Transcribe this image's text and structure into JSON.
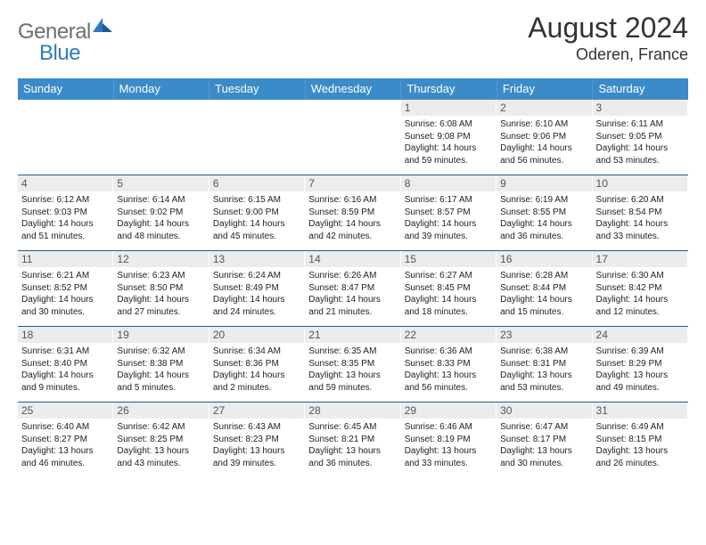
{
  "brand": {
    "main": "General",
    "accent": "Blue"
  },
  "title": "August 2024",
  "location": "Oderen, France",
  "colors": {
    "header_bar": "#3b8bc9",
    "week_divider": "#2a5a86",
    "daynum_bg": "#ececec",
    "logo_gray": "#6f6f6f",
    "logo_blue": "#2f7abf"
  },
  "weekdays": [
    "Sunday",
    "Monday",
    "Tuesday",
    "Wednesday",
    "Thursday",
    "Friday",
    "Saturday"
  ],
  "weeks": [
    [
      {
        "n": "",
        "lines": []
      },
      {
        "n": "",
        "lines": []
      },
      {
        "n": "",
        "lines": []
      },
      {
        "n": "",
        "lines": []
      },
      {
        "n": "1",
        "lines": [
          "Sunrise: 6:08 AM",
          "Sunset: 9:08 PM",
          "Daylight: 14 hours",
          "and 59 minutes."
        ]
      },
      {
        "n": "2",
        "lines": [
          "Sunrise: 6:10 AM",
          "Sunset: 9:06 PM",
          "Daylight: 14 hours",
          "and 56 minutes."
        ]
      },
      {
        "n": "3",
        "lines": [
          "Sunrise: 6:11 AM",
          "Sunset: 9:05 PM",
          "Daylight: 14 hours",
          "and 53 minutes."
        ]
      }
    ],
    [
      {
        "n": "4",
        "lines": [
          "Sunrise: 6:12 AM",
          "Sunset: 9:03 PM",
          "Daylight: 14 hours",
          "and 51 minutes."
        ]
      },
      {
        "n": "5",
        "lines": [
          "Sunrise: 6:14 AM",
          "Sunset: 9:02 PM",
          "Daylight: 14 hours",
          "and 48 minutes."
        ]
      },
      {
        "n": "6",
        "lines": [
          "Sunrise: 6:15 AM",
          "Sunset: 9:00 PM",
          "Daylight: 14 hours",
          "and 45 minutes."
        ]
      },
      {
        "n": "7",
        "lines": [
          "Sunrise: 6:16 AM",
          "Sunset: 8:59 PM",
          "Daylight: 14 hours",
          "and 42 minutes."
        ]
      },
      {
        "n": "8",
        "lines": [
          "Sunrise: 6:17 AM",
          "Sunset: 8:57 PM",
          "Daylight: 14 hours",
          "and 39 minutes."
        ]
      },
      {
        "n": "9",
        "lines": [
          "Sunrise: 6:19 AM",
          "Sunset: 8:55 PM",
          "Daylight: 14 hours",
          "and 36 minutes."
        ]
      },
      {
        "n": "10",
        "lines": [
          "Sunrise: 6:20 AM",
          "Sunset: 8:54 PM",
          "Daylight: 14 hours",
          "and 33 minutes."
        ]
      }
    ],
    [
      {
        "n": "11",
        "lines": [
          "Sunrise: 6:21 AM",
          "Sunset: 8:52 PM",
          "Daylight: 14 hours",
          "and 30 minutes."
        ]
      },
      {
        "n": "12",
        "lines": [
          "Sunrise: 6:23 AM",
          "Sunset: 8:50 PM",
          "Daylight: 14 hours",
          "and 27 minutes."
        ]
      },
      {
        "n": "13",
        "lines": [
          "Sunrise: 6:24 AM",
          "Sunset: 8:49 PM",
          "Daylight: 14 hours",
          "and 24 minutes."
        ]
      },
      {
        "n": "14",
        "lines": [
          "Sunrise: 6:26 AM",
          "Sunset: 8:47 PM",
          "Daylight: 14 hours",
          "and 21 minutes."
        ]
      },
      {
        "n": "15",
        "lines": [
          "Sunrise: 6:27 AM",
          "Sunset: 8:45 PM",
          "Daylight: 14 hours",
          "and 18 minutes."
        ]
      },
      {
        "n": "16",
        "lines": [
          "Sunrise: 6:28 AM",
          "Sunset: 8:44 PM",
          "Daylight: 14 hours",
          "and 15 minutes."
        ]
      },
      {
        "n": "17",
        "lines": [
          "Sunrise: 6:30 AM",
          "Sunset: 8:42 PM",
          "Daylight: 14 hours",
          "and 12 minutes."
        ]
      }
    ],
    [
      {
        "n": "18",
        "lines": [
          "Sunrise: 6:31 AM",
          "Sunset: 8:40 PM",
          "Daylight: 14 hours",
          "and 9 minutes."
        ]
      },
      {
        "n": "19",
        "lines": [
          "Sunrise: 6:32 AM",
          "Sunset: 8:38 PM",
          "Daylight: 14 hours",
          "and 5 minutes."
        ]
      },
      {
        "n": "20",
        "lines": [
          "Sunrise: 6:34 AM",
          "Sunset: 8:36 PM",
          "Daylight: 14 hours",
          "and 2 minutes."
        ]
      },
      {
        "n": "21",
        "lines": [
          "Sunrise: 6:35 AM",
          "Sunset: 8:35 PM",
          "Daylight: 13 hours",
          "and 59 minutes."
        ]
      },
      {
        "n": "22",
        "lines": [
          "Sunrise: 6:36 AM",
          "Sunset: 8:33 PM",
          "Daylight: 13 hours",
          "and 56 minutes."
        ]
      },
      {
        "n": "23",
        "lines": [
          "Sunrise: 6:38 AM",
          "Sunset: 8:31 PM",
          "Daylight: 13 hours",
          "and 53 minutes."
        ]
      },
      {
        "n": "24",
        "lines": [
          "Sunrise: 6:39 AM",
          "Sunset: 8:29 PM",
          "Daylight: 13 hours",
          "and 49 minutes."
        ]
      }
    ],
    [
      {
        "n": "25",
        "lines": [
          "Sunrise: 6:40 AM",
          "Sunset: 8:27 PM",
          "Daylight: 13 hours",
          "and 46 minutes."
        ]
      },
      {
        "n": "26",
        "lines": [
          "Sunrise: 6:42 AM",
          "Sunset: 8:25 PM",
          "Daylight: 13 hours",
          "and 43 minutes."
        ]
      },
      {
        "n": "27",
        "lines": [
          "Sunrise: 6:43 AM",
          "Sunset: 8:23 PM",
          "Daylight: 13 hours",
          "and 39 minutes."
        ]
      },
      {
        "n": "28",
        "lines": [
          "Sunrise: 6:45 AM",
          "Sunset: 8:21 PM",
          "Daylight: 13 hours",
          "and 36 minutes."
        ]
      },
      {
        "n": "29",
        "lines": [
          "Sunrise: 6:46 AM",
          "Sunset: 8:19 PM",
          "Daylight: 13 hours",
          "and 33 minutes."
        ]
      },
      {
        "n": "30",
        "lines": [
          "Sunrise: 6:47 AM",
          "Sunset: 8:17 PM",
          "Daylight: 13 hours",
          "and 30 minutes."
        ]
      },
      {
        "n": "31",
        "lines": [
          "Sunrise: 6:49 AM",
          "Sunset: 8:15 PM",
          "Daylight: 13 hours",
          "and 26 minutes."
        ]
      }
    ]
  ]
}
